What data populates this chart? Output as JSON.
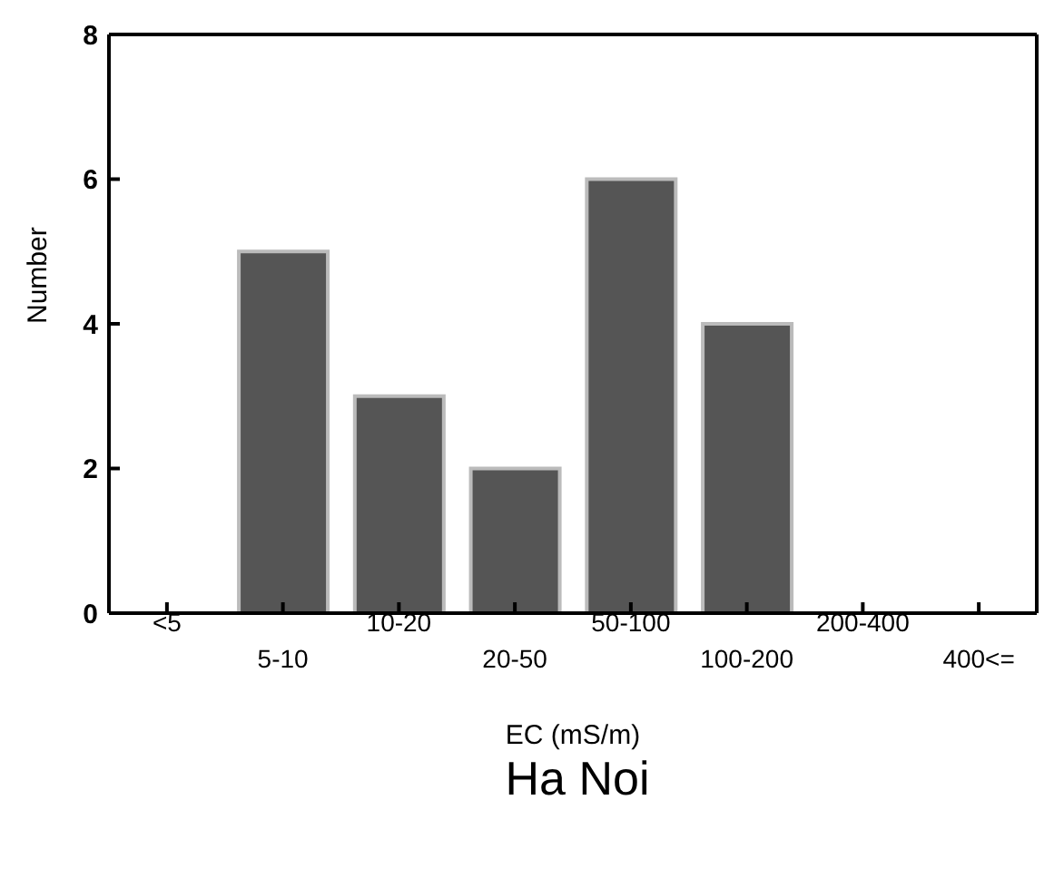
{
  "chart_data": {
    "type": "bar",
    "title": "Ha Noi",
    "xlabel": "EC (mS/m)",
    "ylabel": "Number",
    "categories": [
      "<5",
      "5-10",
      "10-20",
      "20-50",
      "50-100",
      "100-200",
      "200-400",
      "400<="
    ],
    "values": [
      0,
      5,
      3,
      2,
      6,
      4,
      0,
      0
    ],
    "color": "#555555",
    "ylim": [
      0,
      8
    ],
    "yticks": [
      0,
      2,
      4,
      6,
      8
    ],
    "grid": false,
    "legend": false
  }
}
